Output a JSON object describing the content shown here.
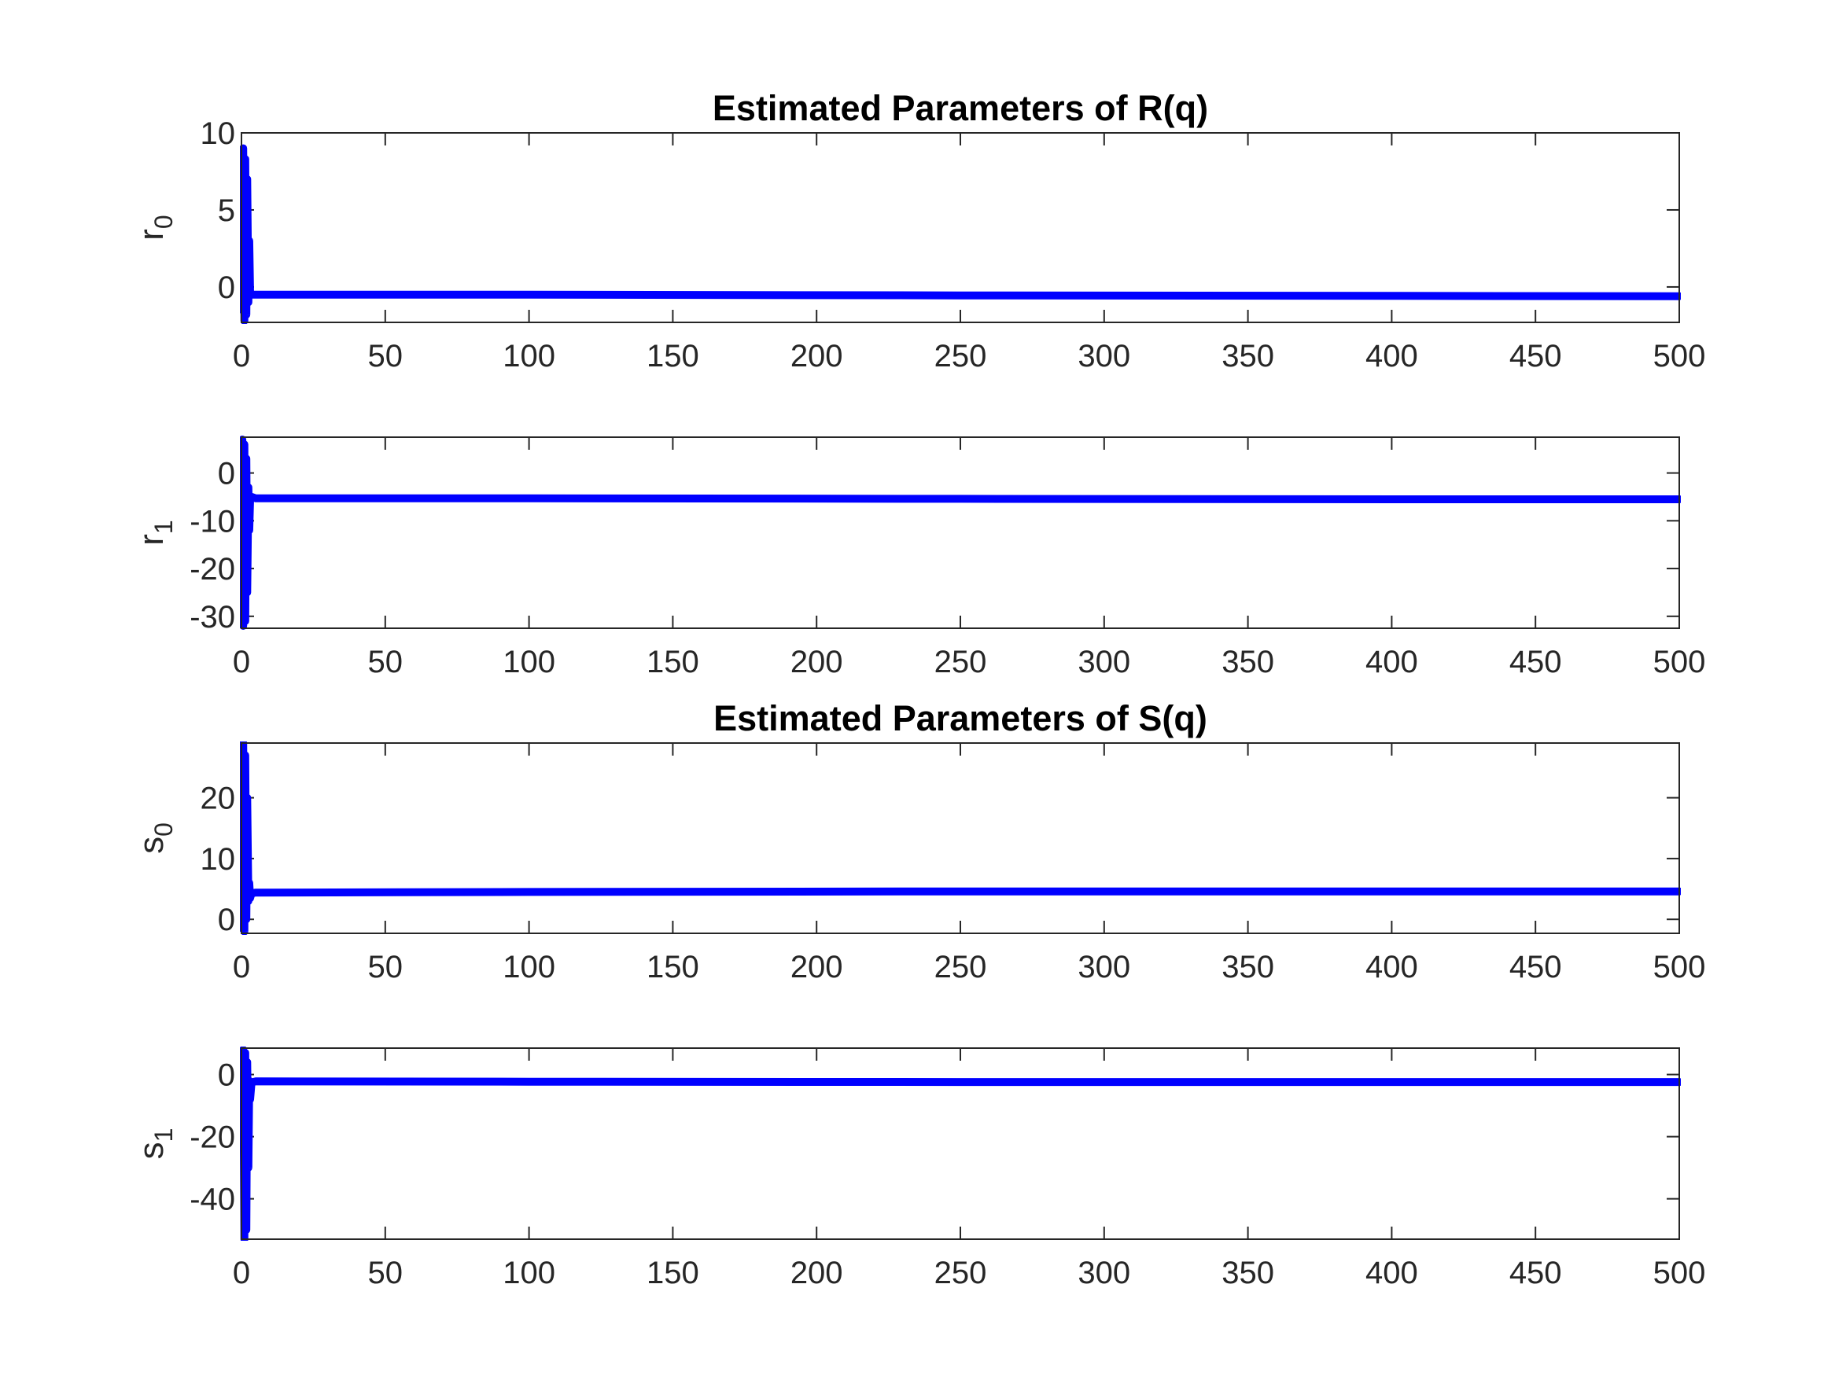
{
  "chart_data": [
    {
      "type": "line",
      "title": "Estimated Parameters of R(q)",
      "ylabel": "r",
      "ylabel_subscript": "0",
      "xlim": [
        0,
        500
      ],
      "ylim": [
        -2.3,
        10
      ],
      "xticks": [
        0,
        50,
        100,
        150,
        200,
        250,
        300,
        350,
        400,
        450,
        500
      ],
      "yticks": [
        0,
        5,
        10
      ],
      "grid": false,
      "series": [
        {
          "color": "#0000ff",
          "x": [
            0,
            0.3,
            0.6,
            1,
            1.3,
            1.7,
            2,
            2.4,
            2.7,
            3,
            3.5,
            5,
            100,
            250,
            400,
            500
          ],
          "y": [
            0.5,
            -1.5,
            9,
            -2.2,
            8.3,
            -1.8,
            7,
            -1.0,
            3.0,
            -0.4,
            -0.5,
            -0.5,
            -0.5,
            -0.55,
            -0.58,
            -0.6
          ]
        }
      ]
    },
    {
      "type": "line",
      "title": "",
      "ylabel": "r",
      "ylabel_subscript": "1",
      "xlim": [
        0,
        500
      ],
      "ylim": [
        -32.5,
        7.5
      ],
      "xticks": [
        0,
        50,
        100,
        150,
        200,
        250,
        300,
        350,
        400,
        450,
        500
      ],
      "yticks": [
        -30,
        -20,
        -10,
        0
      ],
      "grid": false,
      "series": [
        {
          "color": "#0000ff",
          "x": [
            0,
            0.3,
            0.6,
            1,
            1.3,
            1.7,
            2,
            2.4,
            2.7,
            3,
            3.5,
            5,
            100,
            250,
            400,
            500
          ],
          "y": [
            0,
            7,
            -32,
            6,
            -31,
            3,
            -25,
            -3,
            -12,
            -5.5,
            -5,
            -5.3,
            -5.3,
            -5.4,
            -5.5,
            -5.5
          ]
        }
      ]
    },
    {
      "type": "line",
      "title": "Estimated Parameters of S(q)",
      "ylabel": "s",
      "ylabel_subscript": "0",
      "xlim": [
        0,
        500
      ],
      "ylim": [
        -2.3,
        29
      ],
      "xticks": [
        0,
        50,
        100,
        150,
        200,
        250,
        300,
        350,
        400,
        450,
        500
      ],
      "yticks": [
        0,
        10,
        20
      ],
      "grid": false,
      "series": [
        {
          "color": "#0000ff",
          "x": [
            0,
            0.3,
            0.6,
            1,
            1.3,
            1.7,
            2,
            2.4,
            2.7,
            3,
            3.5,
            5,
            100,
            250,
            400,
            500
          ],
          "y": [
            0.5,
            -1.5,
            29,
            -2,
            27,
            0,
            20,
            3,
            6,
            3.5,
            4.3,
            4.4,
            4.5,
            4.6,
            4.6,
            4.6
          ]
        }
      ]
    },
    {
      "type": "line",
      "title": "",
      "ylabel": "s",
      "ylabel_subscript": "1",
      "xlim": [
        0,
        500
      ],
      "ylim": [
        -53,
        8.5
      ],
      "xticks": [
        0,
        50,
        100,
        150,
        200,
        250,
        300,
        350,
        400,
        450,
        500
      ],
      "yticks": [
        -40,
        -20,
        0
      ],
      "grid": false,
      "series": [
        {
          "color": "#0000ff",
          "x": [
            0,
            0.3,
            0.6,
            1,
            1.3,
            1.7,
            2,
            2.4,
            2.7,
            3,
            3.5,
            5,
            100,
            250,
            400,
            500
          ],
          "y": [
            1,
            -10,
            8,
            -53,
            7,
            -50,
            4,
            -30,
            -2,
            -8,
            -2.5,
            -2.2,
            -2.3,
            -2.4,
            -2.4,
            -2.4
          ]
        }
      ]
    }
  ]
}
